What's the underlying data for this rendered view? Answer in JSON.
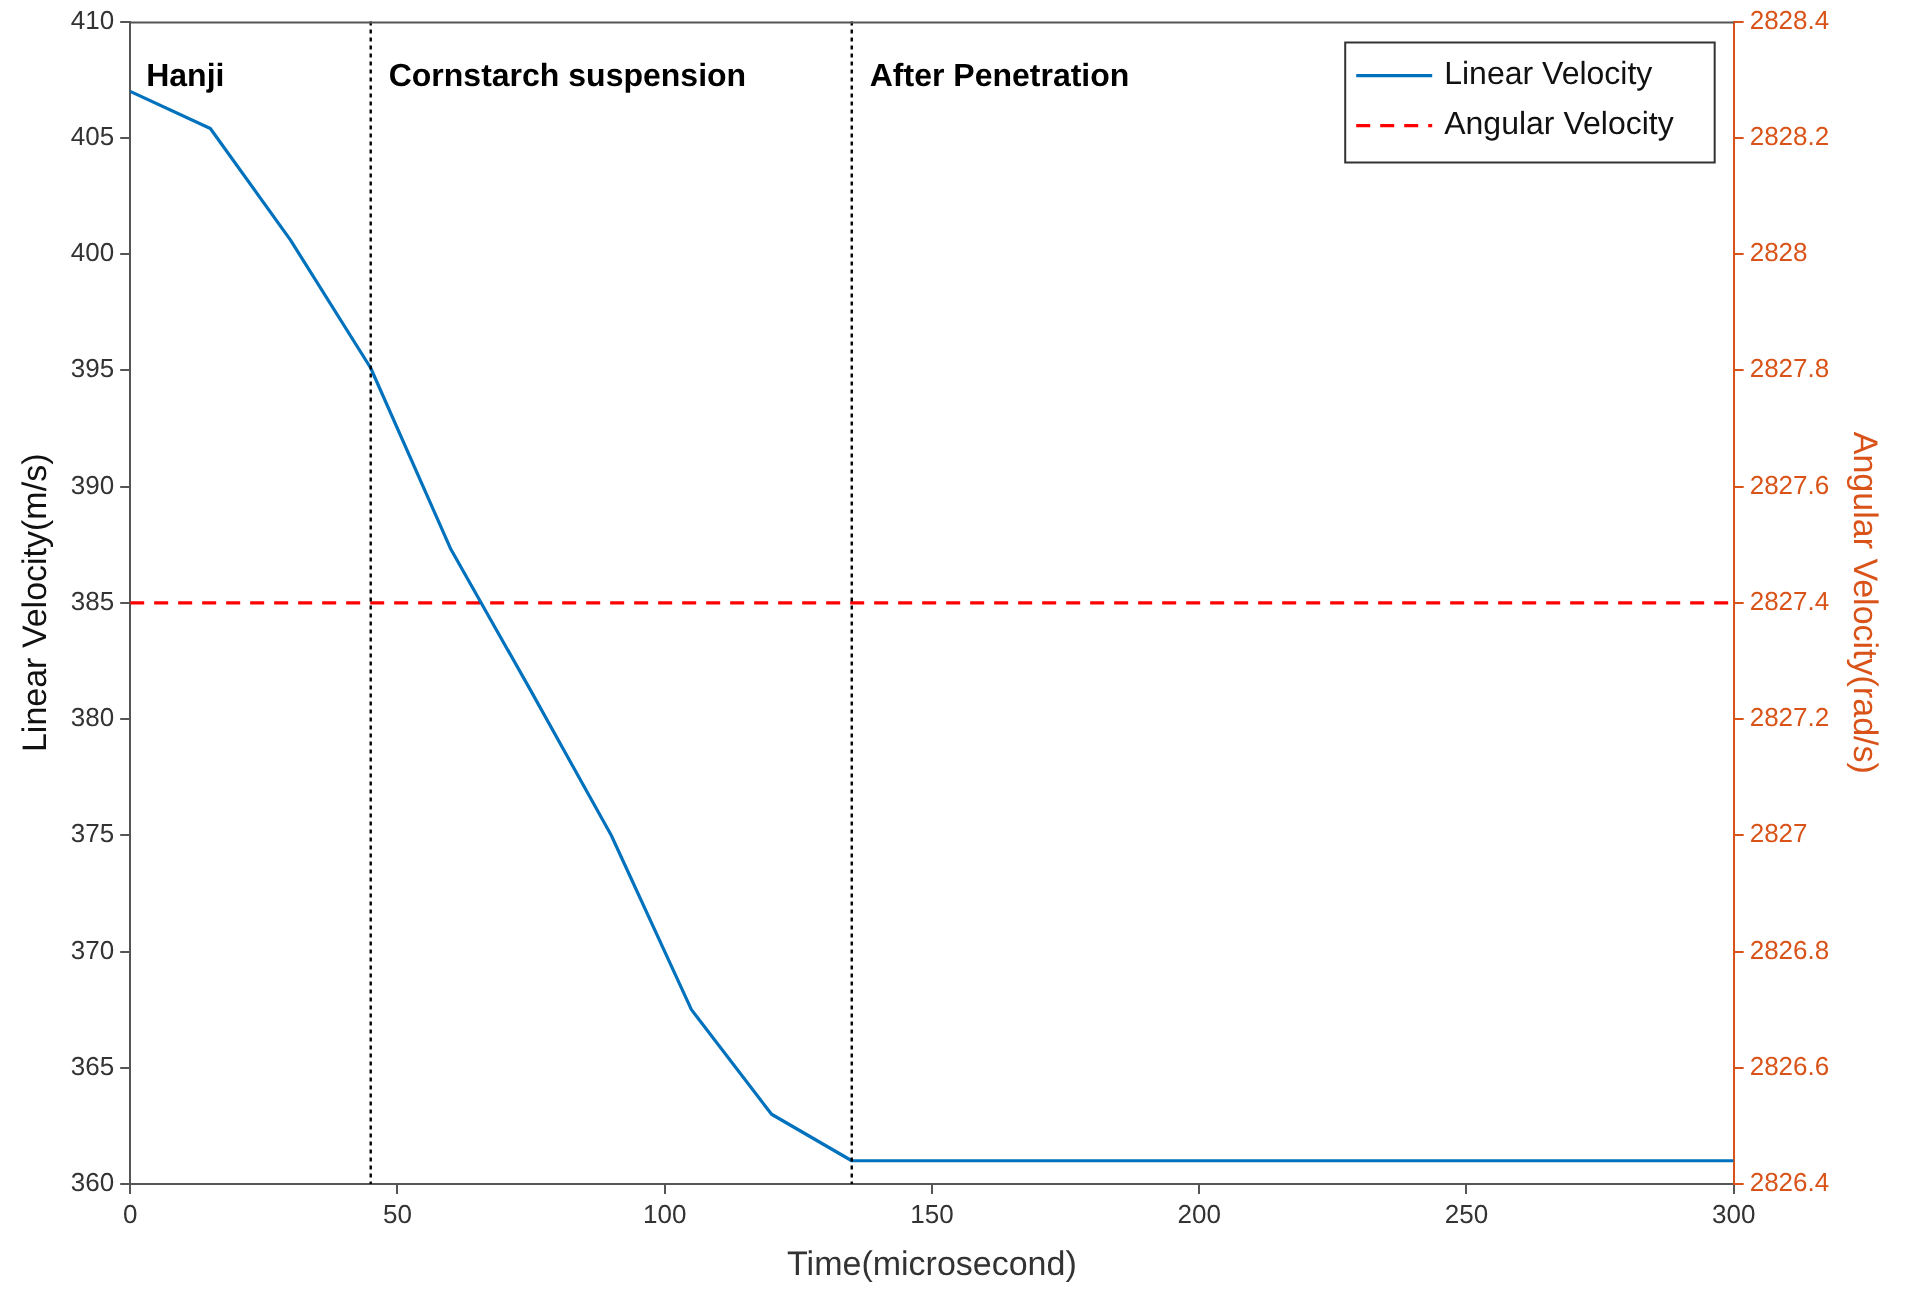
{
  "chart_data": {
    "type": "line",
    "xlabel": "Time(microsecond)",
    "ylabel": "Linear Velocity(m/s)",
    "y2label": "Angular Velocity(rad/s)",
    "xlim": [
      0,
      300
    ],
    "xticks": [
      0,
      50,
      100,
      150,
      200,
      250,
      300
    ],
    "ylim": [
      360,
      410
    ],
    "yticks": [
      360,
      365,
      370,
      375,
      380,
      385,
      390,
      395,
      400,
      405,
      410
    ],
    "y2lim": [
      2826.4,
      2828.4
    ],
    "y2ticks": [
      2826.4,
      2826.6,
      2826.8,
      2827,
      2827.2,
      2827.4,
      2827.6,
      2827.8,
      2828,
      2828.2,
      2828.4
    ],
    "grid": false,
    "legend": "top right",
    "series": [
      {
        "name": "Linear Velocity",
        "color": "#0072bd",
        "line_style": "solid",
        "x": [
          0,
          15,
          30,
          45,
          60,
          75,
          90,
          105,
          120,
          135,
          300
        ],
        "values": [
          407,
          405.4,
          400.6,
          395.1,
          387.3,
          381.2,
          375,
          367.5,
          363,
          361,
          361
        ]
      },
      {
        "name": "Angular Velocity",
        "color": "#ff0000",
        "line_style": "dashed",
        "axis": "y2",
        "x": [
          0,
          300
        ],
        "values": [
          2827.4,
          2827.4
        ]
      }
    ],
    "ref_lines": [
      {
        "axis": "x",
        "value": 45,
        "label": "Cornstarch suspension",
        "color": "#000000",
        "line_style": "dotted"
      },
      {
        "axis": "x",
        "value": 135,
        "label": "After Penetration",
        "color": "#000000",
        "line_style": "dotted"
      }
    ],
    "annotations": [
      "Hanji"
    ]
  }
}
